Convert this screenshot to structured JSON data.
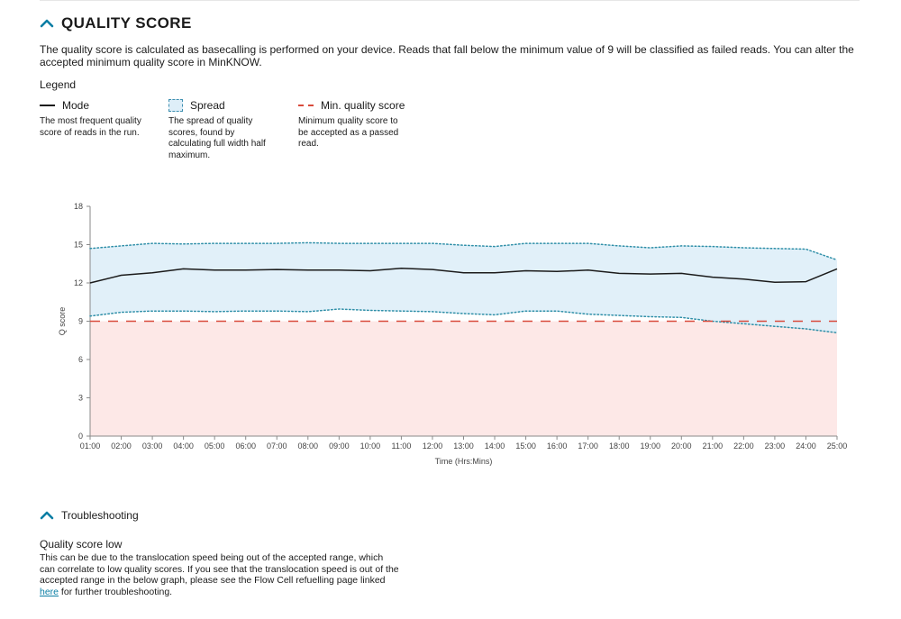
{
  "section": {
    "title": "QUALITY SCORE",
    "intro": "The quality score is calculated as basecalling is performed on your device. Reads that fall below the minimum value of 9 will be classified as failed reads. You can alter the accepted minimum quality score in MinKNOW."
  },
  "legend": {
    "title": "Legend",
    "items": [
      {
        "label": "Mode",
        "desc": "The most frequent quality score of reads in the run.",
        "icon": "solid-line-icon"
      },
      {
        "label": "Spread",
        "desc": "The spread of quality scores, found by calculating full width half maximum.",
        "icon": "dashed-box-icon"
      },
      {
        "label": "Min. quality score",
        "desc": "Minimum quality score to be accepted as a passed read.",
        "icon": "dashed-line-icon"
      }
    ]
  },
  "colors": {
    "mode": "#1b1b1b",
    "spread_fill": "#deeef8",
    "spread_line": "#2f8fa8",
    "min_line": "#d94b3c",
    "fail_fill": "#fde8e7",
    "accent": "#0a7ea4"
  },
  "chart_data": {
    "type": "line",
    "xlabel": "Time (Hrs:Mins)",
    "ylabel": "Q score",
    "ylim": [
      0,
      18
    ],
    "yticks": [
      0,
      3,
      6,
      9,
      12,
      15,
      18
    ],
    "x": [
      "01:00",
      "02:00",
      "03:00",
      "04:00",
      "05:00",
      "06:00",
      "07:00",
      "08:00",
      "09:00",
      "10:00",
      "11:00",
      "12:00",
      "13:00",
      "14:00",
      "15:00",
      "16:00",
      "17:00",
      "18:00",
      "19:00",
      "20:00",
      "21:00",
      "22:00",
      "23:00",
      "24:00",
      "25:00"
    ],
    "series": [
      {
        "name": "Mode",
        "values": [
          12.0,
          12.6,
          12.8,
          13.1,
          13.0,
          13.0,
          13.05,
          13.0,
          13.0,
          12.95,
          13.15,
          13.05,
          12.8,
          12.8,
          12.95,
          12.9,
          13.0,
          12.75,
          12.7,
          12.75,
          12.45,
          12.3,
          12.05,
          12.1,
          13.1
        ]
      },
      {
        "name": "Spread upper",
        "values": [
          14.7,
          14.9,
          15.1,
          15.05,
          15.1,
          15.1,
          15.1,
          15.15,
          15.1,
          15.1,
          15.1,
          15.1,
          14.95,
          14.85,
          15.1,
          15.1,
          15.1,
          14.9,
          14.75,
          14.9,
          14.85,
          14.75,
          14.7,
          14.65,
          13.8
        ]
      },
      {
        "name": "Spread lower",
        "values": [
          9.4,
          9.7,
          9.8,
          9.8,
          9.75,
          9.8,
          9.8,
          9.75,
          9.95,
          9.85,
          9.8,
          9.75,
          9.6,
          9.5,
          9.8,
          9.8,
          9.55,
          9.45,
          9.35,
          9.3,
          9.0,
          8.8,
          8.6,
          8.4,
          8.1
        ]
      },
      {
        "name": "Min. quality score",
        "values": [
          9,
          9,
          9,
          9,
          9,
          9,
          9,
          9,
          9,
          9,
          9,
          9,
          9,
          9,
          9,
          9,
          9,
          9,
          9,
          9,
          9,
          9,
          9,
          9,
          9
        ]
      }
    ]
  },
  "troubleshooting": {
    "title": "Troubleshooting",
    "issue_title": "Quality score low",
    "issue_text_before": "This can be due to the translocation speed being out of the accepted range, which can correlate to low quality scores. If you see that the translocation speed is out of the accepted range in the below graph, please see the Flow Cell refuelling page linked ",
    "link_text": "here",
    "issue_text_after": " for further troubleshooting."
  }
}
